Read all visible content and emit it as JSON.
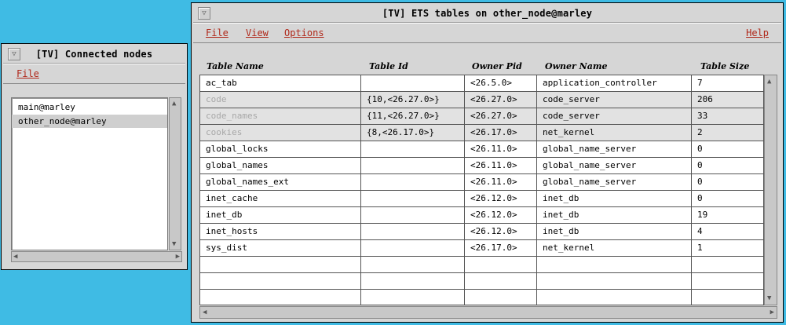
{
  "left_window": {
    "title": "[TV]  Connected nodes",
    "menu": {
      "file": "File"
    },
    "nodes": [
      {
        "name": "main@marley",
        "selected": false
      },
      {
        "name": "other_node@marley",
        "selected": true
      }
    ]
  },
  "main_window": {
    "title": "[TV]  ETS tables on other_node@marley",
    "menu": {
      "file": "File",
      "view": "View",
      "options": "Options",
      "help": "Help"
    },
    "columns": [
      "Table Name",
      "Table Id",
      "Owner Pid",
      "Owner Name",
      "Table Size"
    ],
    "rows": [
      {
        "name": "ac_tab",
        "id": "",
        "pid": "<26.5.0>",
        "owner": "application_controller",
        "size": "7",
        "dim": false
      },
      {
        "name": "code",
        "id": "{10,<26.27.0>}",
        "pid": "<26.27.0>",
        "owner": "code_server",
        "size": "206",
        "dim": true
      },
      {
        "name": "code_names",
        "id": "{11,<26.27.0>}",
        "pid": "<26.27.0>",
        "owner": "code_server",
        "size": "33",
        "dim": true
      },
      {
        "name": "cookies",
        "id": "{8,<26.17.0>}",
        "pid": "<26.17.0>",
        "owner": "net_kernel",
        "size": "2",
        "dim": true
      },
      {
        "name": "global_locks",
        "id": "",
        "pid": "<26.11.0>",
        "owner": "global_name_server",
        "size": "0",
        "dim": false
      },
      {
        "name": "global_names",
        "id": "",
        "pid": "<26.11.0>",
        "owner": "global_name_server",
        "size": "0",
        "dim": false
      },
      {
        "name": "global_names_ext",
        "id": "",
        "pid": "<26.11.0>",
        "owner": "global_name_server",
        "size": "0",
        "dim": false
      },
      {
        "name": "inet_cache",
        "id": "",
        "pid": "<26.12.0>",
        "owner": "inet_db",
        "size": "0",
        "dim": false
      },
      {
        "name": "inet_db",
        "id": "",
        "pid": "<26.12.0>",
        "owner": "inet_db",
        "size": "19",
        "dim": false
      },
      {
        "name": "inet_hosts",
        "id": "",
        "pid": "<26.12.0>",
        "owner": "inet_db",
        "size": "4",
        "dim": false
      },
      {
        "name": "sys_dist",
        "id": "",
        "pid": "<26.17.0>",
        "owner": "net_kernel",
        "size": "1",
        "dim": false
      },
      {
        "name": "",
        "id": "",
        "pid": "",
        "owner": "",
        "size": "",
        "dim": false
      },
      {
        "name": "",
        "id": "",
        "pid": "",
        "owner": "",
        "size": "",
        "dim": false
      },
      {
        "name": "",
        "id": "",
        "pid": "",
        "owner": "",
        "size": "",
        "dim": false
      }
    ]
  },
  "colors": {
    "desktop": "#3fbbe4",
    "window": "#d6d6d6",
    "menu_text": "#b0281a",
    "dim_row": "#e2e2e2"
  }
}
